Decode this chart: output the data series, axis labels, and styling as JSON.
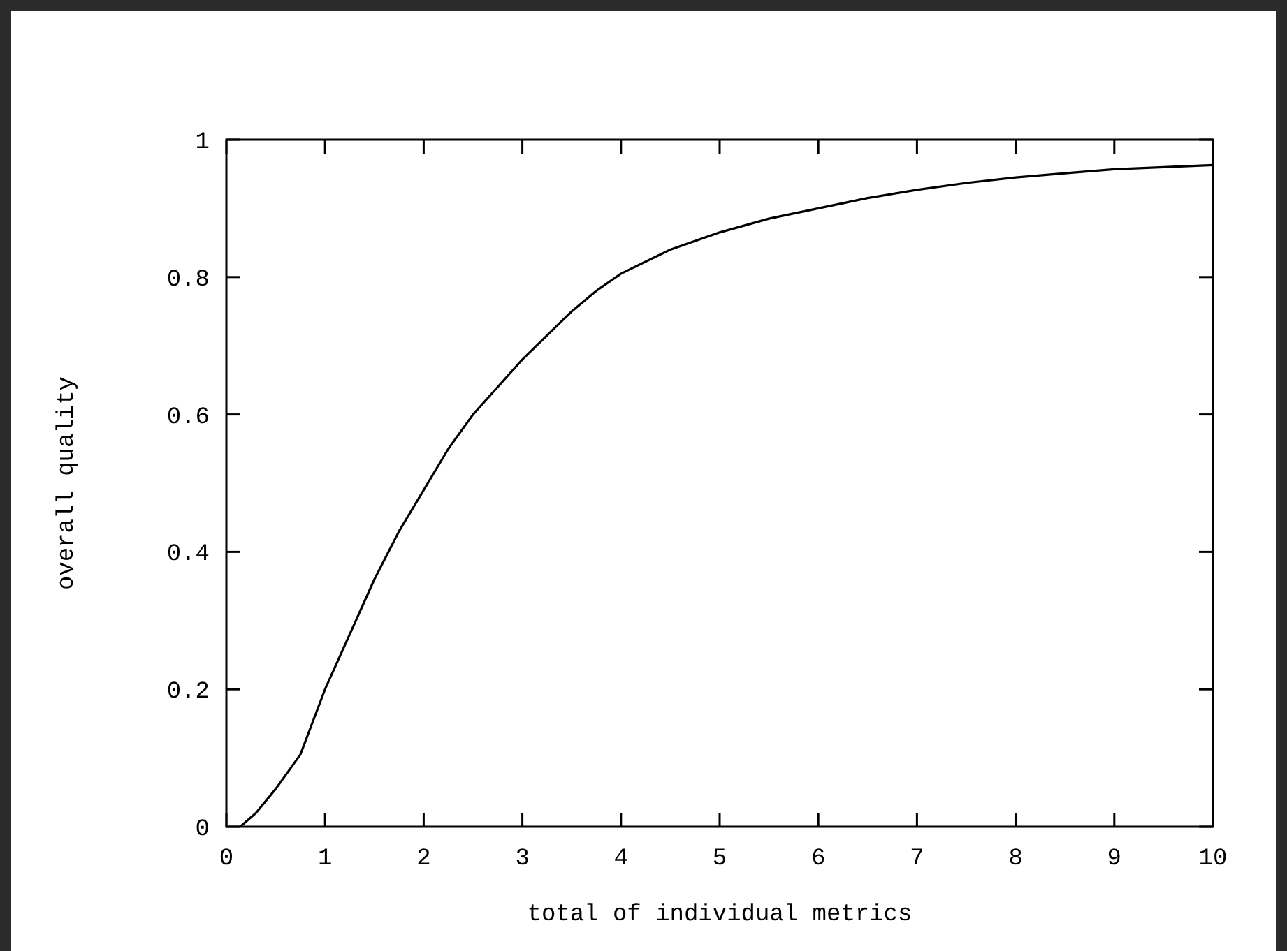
{
  "chart_data": {
    "type": "line",
    "xlabel": "total of individual metrics",
    "ylabel": "overall quality",
    "x": [
      0.14,
      0.3,
      0.5,
      0.75,
      1,
      1.25,
      1.5,
      1.75,
      2,
      2.25,
      2.5,
      2.75,
      3,
      3.25,
      3.5,
      3.75,
      4,
      4.5,
      5,
      5.5,
      6,
      6.5,
      7,
      7.5,
      8,
      8.5,
      9,
      9.5,
      10
    ],
    "series": [
      {
        "color": "#000000",
        "values": [
          0,
          0.02,
          0.055,
          0.105,
          0.2,
          0.28,
          0.36,
          0.43,
          0.49,
          0.55,
          0.6,
          0.64,
          0.68,
          0.715,
          0.75,
          0.78,
          0.805,
          0.84,
          0.865,
          0.885,
          0.9,
          0.915,
          0.927,
          0.937,
          0.945,
          0.951,
          0.957,
          0.96,
          0.963
        ]
      }
    ],
    "xlim": [
      0,
      10
    ],
    "ylim": [
      0,
      1
    ],
    "xticks": [
      0,
      1,
      2,
      3,
      4,
      5,
      6,
      7,
      8,
      9,
      10
    ],
    "yticks": [
      0,
      0.2,
      0.4,
      0.6,
      0.8,
      1
    ],
    "grid": false,
    "marker": "none",
    "line_style": "solid"
  }
}
